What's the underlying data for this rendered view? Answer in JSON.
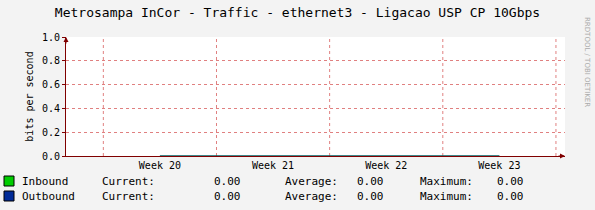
{
  "chart_data": {
    "type": "line",
    "title": "Metrosampa InCor - Traffic - ethernet3 - Ligacao USP CP 10Gbps",
    "y_label": "bits per second",
    "x": [
      20,
      21,
      22,
      23
    ],
    "xlim": [
      19.17,
      23.58
    ],
    "xticks": [
      {
        "value": 20,
        "label": "Week 20"
      },
      {
        "value": 21,
        "label": "Week 21"
      },
      {
        "value": 22,
        "label": "Week 22"
      },
      {
        "value": 23,
        "label": "Week 23"
      }
    ],
    "ylim": [
      0,
      1
    ],
    "yticks": [
      {
        "value": 0,
        "label": "0.0"
      },
      0.2,
      0.4,
      0.6,
      0.8,
      {
        "value": 1,
        "label": "1.0"
      }
    ],
    "grid": true,
    "stats_labels": [
      "Current:",
      "Average:",
      "Maximum:"
    ],
    "series": [
      {
        "name": "Inbound",
        "color": "#00cc00",
        "values": [
          0,
          0,
          0,
          0
        ],
        "stats": [
          {
            "value": 0,
            "label": "0.00"
          },
          {
            "value": 0,
            "label": "0.00"
          },
          {
            "value": 0,
            "label": "0.00"
          }
        ]
      },
      {
        "name": "Outbound",
        "color": "#002a97",
        "values": [
          0,
          0,
          0,
          0
        ],
        "stats": [
          {
            "value": 0,
            "label": "0.00"
          },
          {
            "value": 0,
            "label": "0.00"
          },
          {
            "value": 0,
            "label": "0.00"
          }
        ]
      }
    ],
    "annotations": [
      "RRDTOOL / TOBI OETIKER"
    ]
  }
}
